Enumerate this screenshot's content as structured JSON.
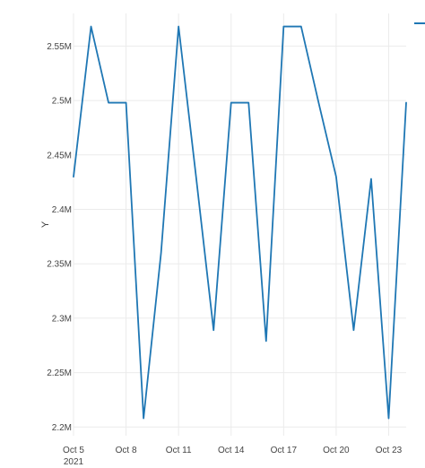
{
  "chart_data": {
    "type": "line",
    "title": "",
    "xlabel": "",
    "ylabel": "Y",
    "grid": true,
    "legend": {
      "position": "top-right",
      "entries": [
        ""
      ]
    },
    "colors": {
      "series": "#1f77b4",
      "grid": "#ebebeb",
      "text": "#444444"
    },
    "x_ticks": [
      {
        "date": "2021-10-05",
        "label": "Oct 5",
        "sublabel": "2021"
      },
      {
        "date": "2021-10-08",
        "label": "Oct 8"
      },
      {
        "date": "2021-10-11",
        "label": "Oct 11"
      },
      {
        "date": "2021-10-14",
        "label": "Oct 14"
      },
      {
        "date": "2021-10-17",
        "label": "Oct 17"
      },
      {
        "date": "2021-10-20",
        "label": "Oct 20"
      },
      {
        "date": "2021-10-23",
        "label": "Oct 23"
      }
    ],
    "xlim": [
      "2021-10-05",
      "2021-10-24"
    ],
    "y_ticks": [
      {
        "value": 2200000,
        "label": "2.2M"
      },
      {
        "value": 2250000,
        "label": "2.25M"
      },
      {
        "value": 2300000,
        "label": "2.3M"
      },
      {
        "value": 2350000,
        "label": "2.35M"
      },
      {
        "value": 2400000,
        "label": "2.4M"
      },
      {
        "value": 2450000,
        "label": "2.45M"
      },
      {
        "value": 2500000,
        "label": "2.5M"
      },
      {
        "value": 2550000,
        "label": "2.55M"
      }
    ],
    "ylim": [
      2192000,
      2580000
    ],
    "series": [
      {
        "x": [
          "2021-10-05",
          "2021-10-06",
          "2021-10-07",
          "2021-10-08",
          "2021-10-09",
          "2021-10-10",
          "2021-10-11",
          "2021-10-12",
          "2021-10-13",
          "2021-10-14",
          "2021-10-15",
          "2021-10-16",
          "2021-10-17",
          "2021-10-18",
          "2021-10-19",
          "2021-10-20",
          "2021-10-21",
          "2021-10-22",
          "2021-10-23",
          "2021-10-24"
        ],
        "y": [
          2430000,
          2568000,
          2498000,
          2498000,
          2208000,
          2360000,
          2568000,
          2430000,
          2289000,
          2498000,
          2498000,
          2279000,
          2568000,
          2568000,
          2498000,
          2430000,
          2289000,
          2428000,
          2208000,
          2498000
        ]
      }
    ]
  }
}
